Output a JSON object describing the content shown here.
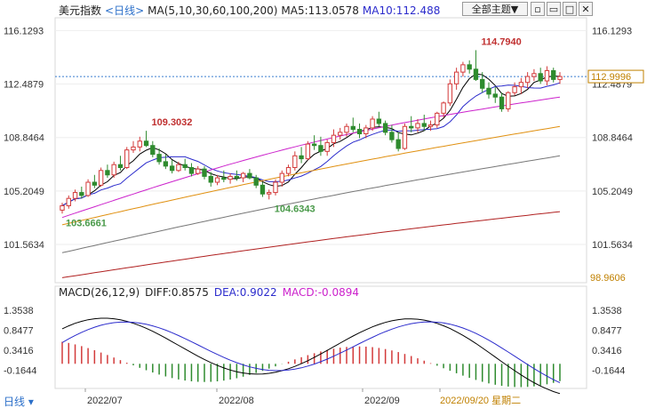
{
  "header": {
    "name": "美元指数",
    "period": "<日线>",
    "ma_label": "MA(5,10,30,60,100,200)",
    "ma5": "MA5:113.0578",
    "ma10": "MA10:112.488"
  },
  "toolbar": {
    "topic_label": "全部主题▼"
  },
  "macd_header": {
    "label": "MACD(26,12,9)",
    "diff": "DIFF:0.8575",
    "dea": "DEA:0.9022",
    "macd": "MACD:-0.0894"
  },
  "footer": {
    "period_label": "日线"
  },
  "colors": {
    "up": "#d33a3a",
    "down": "#2e8b2e",
    "ma5": "#000000",
    "ma10": "#2b2bcc",
    "ma30": "#cc22cc",
    "ma60": "#e09010",
    "ma100": "#777777",
    "ma200": "#b02020",
    "price_axis": "#c08000",
    "date_axis": "#c08000"
  },
  "chart_data": [
    {
      "type": "candlestick",
      "ylim": [
        98.9606,
        117.0
      ],
      "y_ticks": [
        "116.1293",
        "112.4879",
        "108.8464",
        "105.2049",
        "101.5634"
      ],
      "bottom_value_label": "98.9606",
      "current_price_label": "112.9996",
      "current_price": 112.9996,
      "x_tick_labels": [
        "2022/07",
        "2022/08",
        "2022/09",
        "2022/09/20 星期二"
      ],
      "annotations": [
        {
          "text": "109.3032",
          "value": 109.3032,
          "kind": "high"
        },
        {
          "text": "103.6661",
          "value": 103.6661,
          "kind": "low"
        },
        {
          "text": "104.6343",
          "value": 104.6343,
          "kind": "low"
        },
        {
          "text": "114.7940",
          "value": 114.794,
          "kind": "high"
        }
      ],
      "candles": [
        {
          "o": 103.9,
          "h": 104.4,
          "l": 103.67,
          "c": 104.2
        },
        {
          "o": 104.2,
          "h": 104.9,
          "l": 104.0,
          "c": 104.7
        },
        {
          "o": 104.7,
          "h": 105.3,
          "l": 104.5,
          "c": 105.1
        },
        {
          "o": 105.1,
          "h": 105.5,
          "l": 104.7,
          "c": 104.9
        },
        {
          "o": 104.9,
          "h": 106.0,
          "l": 104.8,
          "c": 105.8
        },
        {
          "o": 105.8,
          "h": 106.3,
          "l": 105.4,
          "c": 105.6
        },
        {
          "o": 105.6,
          "h": 106.8,
          "l": 105.5,
          "c": 106.6
        },
        {
          "o": 106.6,
          "h": 107.0,
          "l": 106.1,
          "c": 106.3
        },
        {
          "o": 106.3,
          "h": 107.2,
          "l": 106.1,
          "c": 107.0
        },
        {
          "o": 107.0,
          "h": 107.6,
          "l": 106.6,
          "c": 106.8
        },
        {
          "o": 106.8,
          "h": 108.2,
          "l": 106.7,
          "c": 108.0
        },
        {
          "o": 108.0,
          "h": 108.6,
          "l": 107.8,
          "c": 108.2
        },
        {
          "o": 108.2,
          "h": 108.9,
          "l": 107.9,
          "c": 108.6
        },
        {
          "o": 108.6,
          "h": 109.3032,
          "l": 108.2,
          "c": 108.3
        },
        {
          "o": 108.3,
          "h": 108.6,
          "l": 107.5,
          "c": 107.7
        },
        {
          "o": 107.7,
          "h": 108.1,
          "l": 107.0,
          "c": 107.2
        },
        {
          "o": 107.2,
          "h": 107.7,
          "l": 106.7,
          "c": 106.9
        },
        {
          "o": 106.9,
          "h": 107.3,
          "l": 106.4,
          "c": 106.6
        },
        {
          "o": 106.6,
          "h": 107.2,
          "l": 106.5,
          "c": 107.0
        },
        {
          "o": 107.0,
          "h": 107.4,
          "l": 106.6,
          "c": 106.8
        },
        {
          "o": 106.8,
          "h": 107.1,
          "l": 106.2,
          "c": 106.4
        },
        {
          "o": 106.4,
          "h": 106.9,
          "l": 106.3,
          "c": 106.7
        },
        {
          "o": 106.7,
          "h": 106.9,
          "l": 106.0,
          "c": 106.2
        },
        {
          "o": 106.2,
          "h": 106.5,
          "l": 105.5,
          "c": 105.8
        },
        {
          "o": 105.8,
          "h": 106.3,
          "l": 105.6,
          "c": 106.1
        },
        {
          "o": 106.1,
          "h": 106.6,
          "l": 105.8,
          "c": 106.0
        },
        {
          "o": 106.0,
          "h": 106.4,
          "l": 105.7,
          "c": 106.2
        },
        {
          "o": 106.2,
          "h": 106.6,
          "l": 105.9,
          "c": 106.1
        },
        {
          "o": 106.1,
          "h": 106.5,
          "l": 105.8,
          "c": 106.4
        },
        {
          "o": 106.4,
          "h": 106.7,
          "l": 106.0,
          "c": 106.1
        },
        {
          "o": 106.1,
          "h": 106.3,
          "l": 105.4,
          "c": 105.6
        },
        {
          "o": 105.6,
          "h": 105.8,
          "l": 104.8,
          "c": 105.0
        },
        {
          "o": 105.0,
          "h": 105.3,
          "l": 104.63,
          "c": 105.1
        },
        {
          "o": 105.1,
          "h": 106.0,
          "l": 104.9,
          "c": 105.8
        },
        {
          "o": 105.8,
          "h": 106.6,
          "l": 105.5,
          "c": 106.4
        },
        {
          "o": 106.4,
          "h": 107.0,
          "l": 106.2,
          "c": 106.8
        },
        {
          "o": 106.8,
          "h": 107.9,
          "l": 106.6,
          "c": 107.6
        },
        {
          "o": 107.6,
          "h": 108.2,
          "l": 107.1,
          "c": 107.4
        },
        {
          "o": 107.4,
          "h": 108.6,
          "l": 107.3,
          "c": 108.4
        },
        {
          "o": 108.4,
          "h": 109.0,
          "l": 108.0,
          "c": 108.3
        },
        {
          "o": 108.3,
          "h": 108.9,
          "l": 107.6,
          "c": 107.9
        },
        {
          "o": 107.9,
          "h": 108.7,
          "l": 107.6,
          "c": 108.5
        },
        {
          "o": 108.5,
          "h": 109.4,
          "l": 108.2,
          "c": 109.0
        },
        {
          "o": 109.0,
          "h": 109.5,
          "l": 108.7,
          "c": 109.2
        },
        {
          "o": 109.2,
          "h": 109.8,
          "l": 108.9,
          "c": 109.6
        },
        {
          "o": 109.6,
          "h": 110.2,
          "l": 109.2,
          "c": 109.4
        },
        {
          "o": 109.4,
          "h": 109.8,
          "l": 108.8,
          "c": 109.1
        },
        {
          "o": 109.1,
          "h": 109.7,
          "l": 108.8,
          "c": 109.5
        },
        {
          "o": 109.5,
          "h": 110.3,
          "l": 109.3,
          "c": 110.1
        },
        {
          "o": 110.1,
          "h": 110.6,
          "l": 109.6,
          "c": 109.8
        },
        {
          "o": 109.8,
          "h": 110.0,
          "l": 109.0,
          "c": 109.2
        },
        {
          "o": 109.2,
          "h": 109.7,
          "l": 108.5,
          "c": 108.7
        },
        {
          "o": 108.7,
          "h": 109.2,
          "l": 107.9,
          "c": 108.1
        },
        {
          "o": 108.1,
          "h": 109.8,
          "l": 108.0,
          "c": 109.6
        },
        {
          "o": 109.6,
          "h": 110.3,
          "l": 109.2,
          "c": 109.5
        },
        {
          "o": 109.5,
          "h": 110.1,
          "l": 109.2,
          "c": 109.8
        },
        {
          "o": 109.8,
          "h": 110.4,
          "l": 109.3,
          "c": 109.6
        },
        {
          "o": 109.6,
          "h": 110.0,
          "l": 109.3,
          "c": 109.7
        },
        {
          "o": 109.7,
          "h": 110.6,
          "l": 109.5,
          "c": 110.5
        },
        {
          "o": 110.5,
          "h": 111.3,
          "l": 110.2,
          "c": 111.2
        },
        {
          "o": 111.2,
          "h": 112.8,
          "l": 111.0,
          "c": 112.5
        },
        {
          "o": 112.5,
          "h": 113.6,
          "l": 112.1,
          "c": 113.3
        },
        {
          "o": 113.3,
          "h": 114.0,
          "l": 113.0,
          "c": 113.8
        },
        {
          "o": 113.8,
          "h": 114.1,
          "l": 113.2,
          "c": 113.5
        },
        {
          "o": 113.5,
          "h": 114.794,
          "l": 112.7,
          "c": 112.8
        },
        {
          "o": 112.8,
          "h": 113.3,
          "l": 111.9,
          "c": 112.2
        },
        {
          "o": 112.2,
          "h": 112.6,
          "l": 111.5,
          "c": 111.8
        },
        {
          "o": 111.8,
          "h": 112.3,
          "l": 111.2,
          "c": 111.6
        },
        {
          "o": 111.6,
          "h": 111.9,
          "l": 110.6,
          "c": 110.8
        },
        {
          "o": 110.8,
          "h": 112.0,
          "l": 110.6,
          "c": 111.9
        },
        {
          "o": 111.9,
          "h": 112.6,
          "l": 111.7,
          "c": 112.3
        },
        {
          "o": 112.3,
          "h": 112.9,
          "l": 111.8,
          "c": 112.6
        },
        {
          "o": 112.6,
          "h": 113.3,
          "l": 112.2,
          "c": 113.0
        },
        {
          "o": 113.0,
          "h": 113.5,
          "l": 112.7,
          "c": 113.2
        },
        {
          "o": 113.2,
          "h": 113.6,
          "l": 112.5,
          "c": 112.7
        },
        {
          "o": 112.7,
          "h": 113.7,
          "l": 112.4,
          "c": 113.4
        },
        {
          "o": 113.4,
          "h": 113.6,
          "l": 112.6,
          "c": 112.8
        },
        {
          "o": 112.8,
          "h": 113.3,
          "l": 112.5,
          "c": 113.0
        }
      ],
      "ma_lines": [
        {
          "name": "MA5",
          "color_key": "ma5",
          "start": 103.9,
          "end": 113.05
        },
        {
          "name": "MA10",
          "color_key": "ma10",
          "start": 104.1,
          "end": 112.49
        },
        {
          "name": "MA30",
          "color_key": "ma30",
          "start": 103.4,
          "end": 111.6
        },
        {
          "name": "MA60",
          "color_key": "ma60",
          "start": 102.9,
          "end": 109.6
        },
        {
          "name": "MA100",
          "color_key": "ma100",
          "start": 101.0,
          "end": 107.6
        },
        {
          "name": "MA200",
          "color_key": "ma200",
          "start": 99.3,
          "end": 103.8
        }
      ]
    },
    {
      "type": "macd",
      "ylim": [
        -0.6,
        1.6
      ],
      "y_ticks": [
        "1.3538",
        "0.8477",
        "0.3416",
        "-0.1644"
      ],
      "diff": 0.8575,
      "dea": 0.9022,
      "macd": -0.0894
    }
  ]
}
